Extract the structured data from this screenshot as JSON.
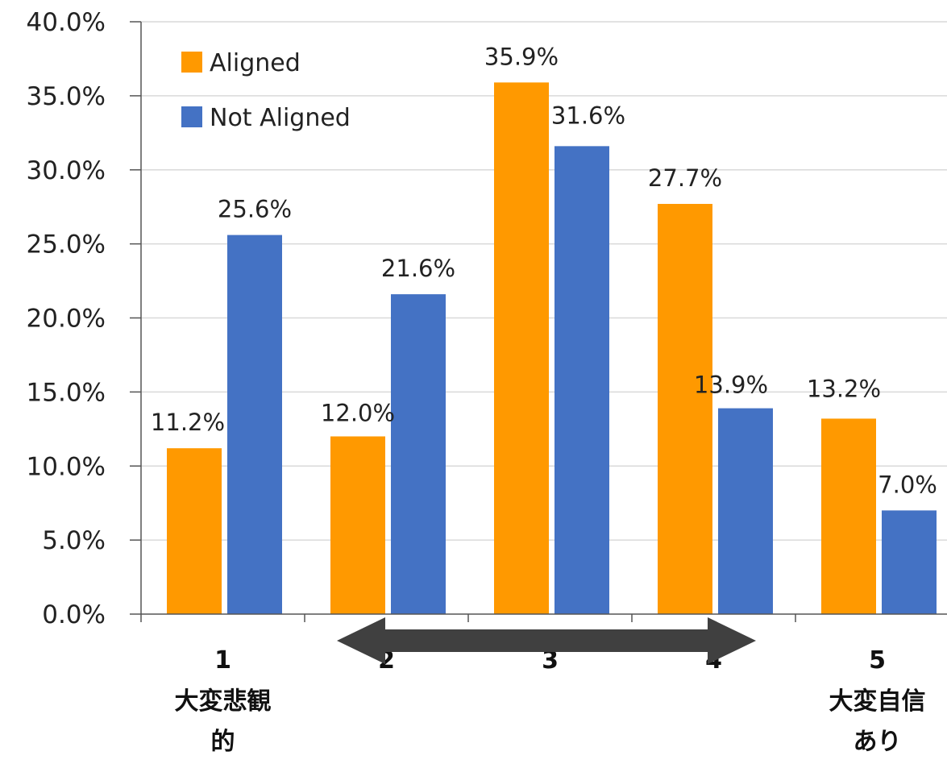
{
  "chart_data": {
    "type": "bar",
    "categories": [
      "1",
      "2",
      "3",
      "4",
      "5"
    ],
    "category_sublabels": [
      [
        "大変悲観",
        "的"
      ],
      [],
      [],
      [],
      [
        "大変自信",
        "あり"
      ]
    ],
    "series": [
      {
        "name": "Aligned",
        "color": "#FF9900",
        "values": [
          11.2,
          12.0,
          35.9,
          27.7,
          13.2
        ],
        "labels": [
          "11.2%",
          "12.0%",
          "35.9%",
          "27.7%",
          "13.2%"
        ]
      },
      {
        "name": "Not Aligned",
        "color": "#4472C4",
        "values": [
          25.6,
          21.6,
          31.6,
          13.9,
          7.0
        ],
        "labels": [
          "25.6%",
          "21.6%",
          "31.6%",
          "13.9%",
          "7.0%"
        ]
      }
    ],
    "ylim": [
      0,
      40
    ],
    "yticks": [
      "0.0%",
      "5.0%",
      "10.0%",
      "15.0%",
      "20.0%",
      "25.0%",
      "30.0%",
      "35.0%",
      "40.0%"
    ],
    "grid": true,
    "legend_position": "top-left",
    "arrow": "double-headed arrow between categories"
  }
}
